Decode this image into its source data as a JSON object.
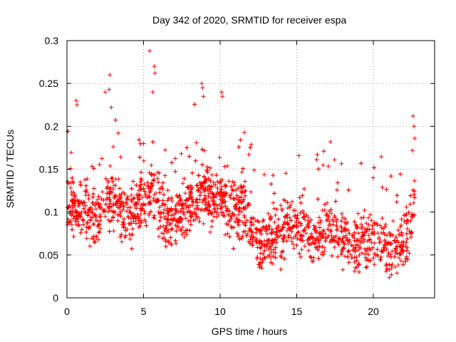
{
  "chart_data": {
    "type": "scatter",
    "title": "Day 342 of 2020, SRMTID for receiver espa",
    "xlabel": "GPS time / hours",
    "ylabel": "SRMTID / TECUs",
    "xlim": [
      0,
      24
    ],
    "ylim": [
      0,
      0.3
    ],
    "xticks": [
      0,
      5,
      10,
      15,
      20
    ],
    "xtick_labels": [
      "0",
      "5",
      "10",
      "15",
      "20"
    ],
    "yticks": [
      0,
      0.05,
      0.1,
      0.15,
      0.2,
      0.25,
      0.3
    ],
    "ytick_labels": [
      "0",
      "0.05",
      "0.1",
      "0.15",
      "0.2",
      "0.25",
      "0.3"
    ],
    "grid": true,
    "marker": "plus",
    "series_color": "#ff0000",
    "x_data_range": [
      0,
      22.7
    ],
    "trend": [
      [
        0.0,
        0.11
      ],
      [
        0.5,
        0.105
      ],
      [
        1.0,
        0.1
      ],
      [
        1.5,
        0.095
      ],
      [
        2.0,
        0.09
      ],
      [
        2.5,
        0.11
      ],
      [
        3.0,
        0.12
      ],
      [
        3.5,
        0.1
      ],
      [
        4.0,
        0.095
      ],
      [
        4.5,
        0.105
      ],
      [
        5.0,
        0.115
      ],
      [
        5.5,
        0.13
      ],
      [
        6.0,
        0.1
      ],
      [
        6.5,
        0.09
      ],
      [
        7.0,
        0.095
      ],
      [
        7.5,
        0.1
      ],
      [
        8.0,
        0.11
      ],
      [
        8.5,
        0.115
      ],
      [
        9.0,
        0.125
      ],
      [
        9.5,
        0.11
      ],
      [
        10.0,
        0.115
      ],
      [
        10.5,
        0.1
      ],
      [
        11.0,
        0.105
      ],
      [
        11.5,
        0.1
      ],
      [
        12.0,
        0.085
      ],
      [
        12.5,
        0.065
      ],
      [
        13.0,
        0.07
      ],
      [
        13.5,
        0.075
      ],
      [
        14.0,
        0.075
      ],
      [
        14.5,
        0.09
      ],
      [
        15.0,
        0.09
      ],
      [
        15.5,
        0.085
      ],
      [
        16.0,
        0.07
      ],
      [
        16.5,
        0.075
      ],
      [
        17.0,
        0.085
      ],
      [
        17.5,
        0.08
      ],
      [
        18.0,
        0.07
      ],
      [
        18.5,
        0.06
      ],
      [
        19.0,
        0.065
      ],
      [
        19.5,
        0.07
      ],
      [
        20.0,
        0.065
      ],
      [
        20.5,
        0.065
      ],
      [
        21.0,
        0.055
      ],
      [
        21.5,
        0.06
      ],
      [
        22.0,
        0.065
      ],
      [
        22.5,
        0.09
      ],
      [
        22.7,
        0.12
      ]
    ],
    "spikes": [
      {
        "x": 0.6,
        "y": 0.23
      },
      {
        "x": 0.65,
        "y": 0.225
      },
      {
        "x": 2.5,
        "y": 0.24
      },
      {
        "x": 2.75,
        "y": 0.243
      },
      {
        "x": 2.8,
        "y": 0.26
      },
      {
        "x": 2.9,
        "y": 0.222
      },
      {
        "x": 5.4,
        "y": 0.288
      },
      {
        "x": 5.6,
        "y": 0.24
      },
      {
        "x": 5.7,
        "y": 0.27
      },
      {
        "x": 5.75,
        "y": 0.262
      },
      {
        "x": 8.8,
        "y": 0.25
      },
      {
        "x": 8.85,
        "y": 0.245
      },
      {
        "x": 8.9,
        "y": 0.235
      },
      {
        "x": 10.1,
        "y": 0.24
      },
      {
        "x": 10.15,
        "y": 0.235
      },
      {
        "x": 17.2,
        "y": 0.182
      },
      {
        "x": 22.6,
        "y": 0.212
      },
      {
        "x": 22.65,
        "y": 0.2
      },
      {
        "x": 22.7,
        "y": 0.186
      },
      {
        "x": 22.55,
        "y": 0.172
      }
    ],
    "n_points": 2600,
    "spread": 0.028
  }
}
